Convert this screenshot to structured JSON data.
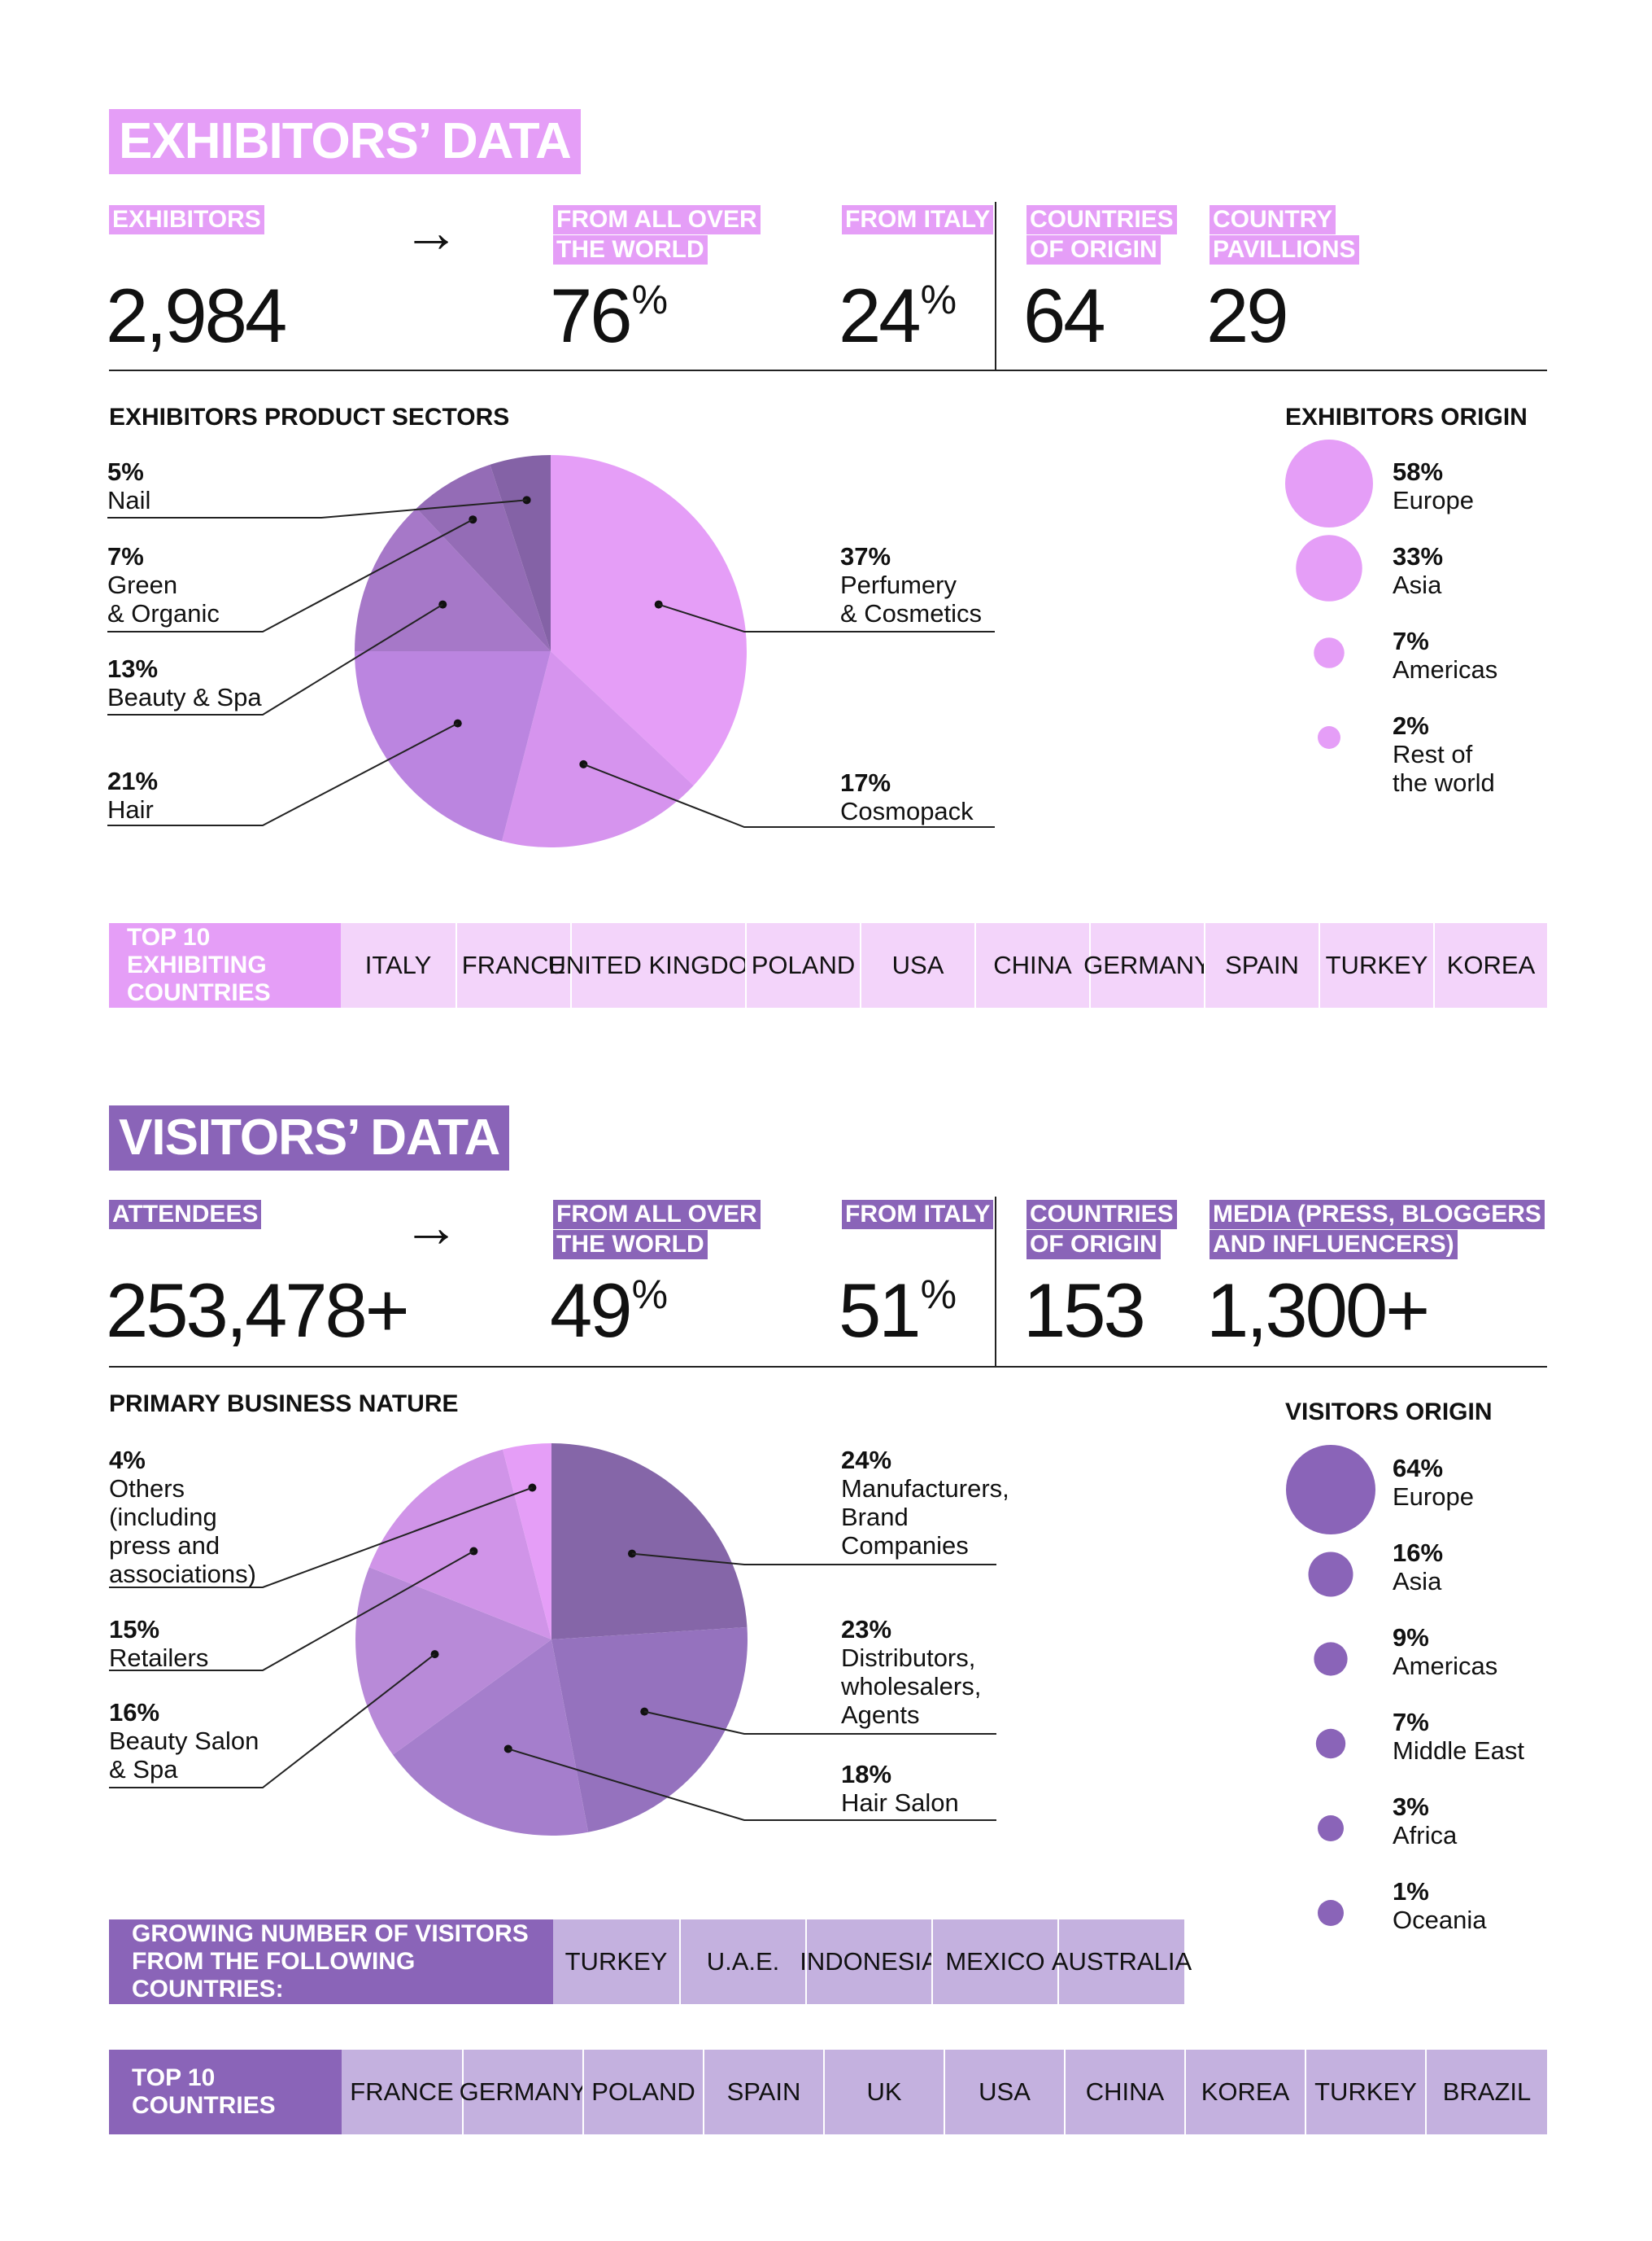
{
  "colors": {
    "exhibitor_accent": "#E59EF7",
    "exhibitor_light": "#F3D4FA",
    "visitor_accent": "#8A64B8",
    "visitor_light": "#C4B1DF"
  },
  "exhibitors": {
    "title": "EXHIBITORS’ DATA",
    "stats": {
      "exhibitors": {
        "label": [
          "EXHIBITORS"
        ],
        "value": "2,984"
      },
      "world": {
        "label": [
          "FROM ALL OVER",
          "THE WORLD"
        ],
        "value": "76",
        "unit": "%"
      },
      "italy": {
        "label": [
          "FROM ITALY"
        ],
        "value": "24",
        "unit": "%"
      },
      "countries": {
        "label": [
          "COUNTRIES",
          "OF ORIGIN"
        ],
        "value": "64"
      },
      "pavillions": {
        "label": [
          "COUNTRY",
          "PAVILLIONS"
        ],
        "value": "29"
      }
    },
    "sectors_title": "EXHIBITORS PRODUCT SECTORS",
    "origin_title": "EXHIBITORS ORIGIN",
    "top_title": "TOP 10 EXHIBITING COUNTRIES",
    "top_countries": [
      "ITALY",
      "FRANCE",
      "UNITED KINGDOM",
      "POLAND",
      "USA",
      "CHINA",
      "GERMANY",
      "SPAIN",
      "TURKEY",
      "KOREA"
    ]
  },
  "visitors": {
    "title": "VISITORS’ DATA",
    "stats": {
      "attendees": {
        "label": [
          "ATTENDEES"
        ],
        "value": "253,478+"
      },
      "world": {
        "label": [
          "FROM ALL OVER",
          "THE WORLD"
        ],
        "value": "49",
        "unit": "%"
      },
      "italy": {
        "label": [
          "FROM ITALY"
        ],
        "value": "51",
        "unit": "%"
      },
      "countries": {
        "label": [
          "COUNTRIES",
          "OF ORIGIN"
        ],
        "value": "153"
      },
      "media": {
        "label": [
          "MEDIA (PRESS, BLOGGERS",
          "AND INFLUENCERS)"
        ],
        "value": "1,300+"
      }
    },
    "business_title": "PRIMARY BUSINESS NATURE",
    "origin_title": "VISITORS ORIGIN",
    "growing_title": "GROWING NUMBER OF VISITORS FROM THE FOLLOWING COUNTRIES:",
    "growing_countries": [
      "TURKEY",
      "U.A.E.",
      "INDONESIA",
      "MEXICO",
      "AUSTRALIA"
    ],
    "top_title": "TOP 10 COUNTRIES",
    "top_countries": [
      "FRANCE",
      "GERMANY",
      "POLAND",
      "SPAIN",
      "UK",
      "USA",
      "CHINA",
      "KOREA",
      "TURKEY",
      "BRAZIL"
    ]
  },
  "chart_data": [
    {
      "type": "pie",
      "title": "EXHIBITORS PRODUCT SECTORS",
      "slices": [
        {
          "label": "Perfumery & Cosmetics",
          "value": 37,
          "display": "37%",
          "color": "#E59EF7"
        },
        {
          "label": "Cosmopack",
          "value": 17,
          "display": "17%",
          "color": "#D694EE"
        },
        {
          "label": "Hair",
          "value": 21,
          "display": "21%",
          "color": "#BB85E0"
        },
        {
          "label": "Beauty & Spa",
          "value": 13,
          "display": "13%",
          "color": "#A678C8"
        },
        {
          "label": "Green & Organic",
          "value": 7,
          "display": "7%",
          "color": "#946CB6"
        },
        {
          "label": "Nail",
          "value": 5,
          "display": "5%",
          "color": "#8462A6"
        }
      ]
    },
    {
      "type": "bubble",
      "title": "EXHIBITORS ORIGIN",
      "items": [
        {
          "label": "Europe",
          "value": 58,
          "display": "58%",
          "color": "#E59EF7"
        },
        {
          "label": "Asia",
          "value": 33,
          "display": "33%",
          "color": "#E59EF7"
        },
        {
          "label": "Americas",
          "value": 7,
          "display": "7%",
          "color": "#E59EF7"
        },
        {
          "label": "Rest of\nthe world",
          "value": 2,
          "display": "2%",
          "color": "#E59EF7"
        }
      ]
    },
    {
      "type": "pie",
      "title": "PRIMARY BUSINESS NATURE",
      "slices": [
        {
          "label": "Manufacturers,\nBrand\nCompanies",
          "value": 24,
          "display": "24%",
          "color": "#8566A8"
        },
        {
          "label": "Distributors,\nwholesalers,\nAgents",
          "value": 23,
          "display": "23%",
          "color": "#9572BE"
        },
        {
          "label": "Hair Salon",
          "value": 18,
          "display": "18%",
          "color": "#A57ECC"
        },
        {
          "label": "Beauty Salon\n& Spa",
          "value": 16,
          "display": "16%",
          "color": "#B88AD8"
        },
        {
          "label": "Retailers",
          "value": 15,
          "display": "15%",
          "color": "#D094E8"
        },
        {
          "label": "Others\n(including\npress and\nassociations)",
          "value": 4,
          "display": "4%",
          "color": "#E59EF7"
        }
      ]
    },
    {
      "type": "bubble",
      "title": "VISITORS ORIGIN",
      "items": [
        {
          "label": "Europe",
          "value": 64,
          "display": "64%",
          "color": "#8A64B8"
        },
        {
          "label": "Asia",
          "value": 16,
          "display": "16%",
          "color": "#8A64B8"
        },
        {
          "label": "Americas",
          "value": 9,
          "display": "9%",
          "color": "#8A64B8"
        },
        {
          "label": "Middle East",
          "value": 7,
          "display": "7%",
          "color": "#8A64B8"
        },
        {
          "label": "Africa",
          "value": 3,
          "display": "3%",
          "color": "#8A64B8"
        },
        {
          "label": "Oceania",
          "value": 1,
          "display": "1%",
          "color": "#8A64B8"
        }
      ]
    }
  ]
}
